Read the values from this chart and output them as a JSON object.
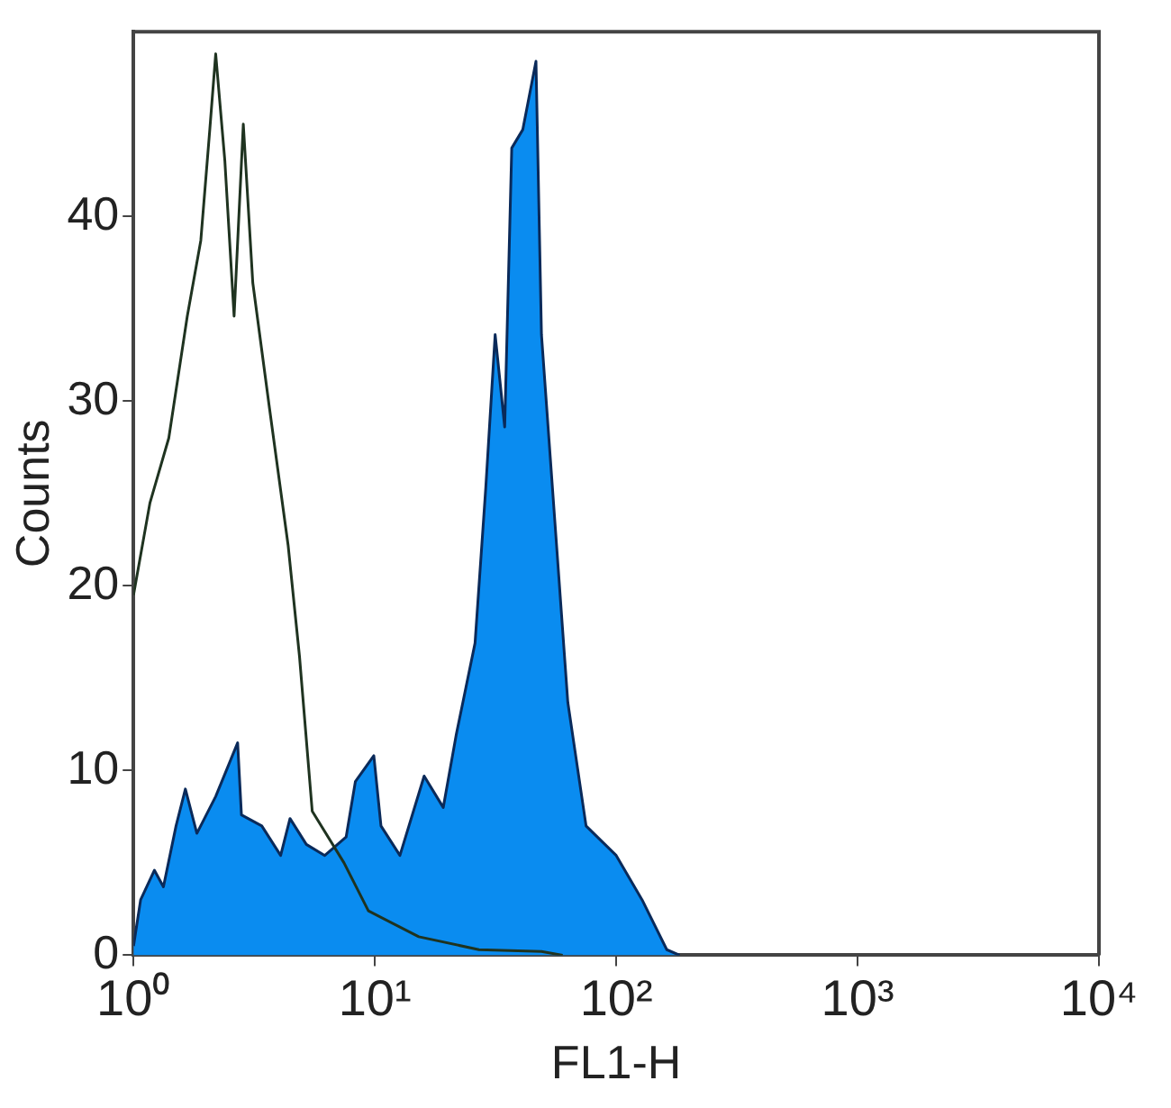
{
  "chart_data": {
    "type": "area",
    "xlabel": "FL1-H",
    "ylabel": "Counts",
    "log": "x",
    "grid": false,
    "legend": false,
    "marker": "none",
    "xlim": [
      1,
      10000
    ],
    "xticks": [
      {
        "value": 1,
        "label": "10⁰"
      },
      {
        "value": 10,
        "label": "10¹"
      },
      {
        "value": 100,
        "label": "10²"
      },
      {
        "value": 1000,
        "label": "10³"
      },
      {
        "value": 10000,
        "label": "10⁴"
      }
    ],
    "ylim": [
      0,
      50
    ],
    "yticks": [
      0,
      10,
      20,
      30,
      40
    ],
    "series": [
      {
        "color": "#0a8cf0",
        "x": [
          1.0,
          1.07,
          1.22,
          1.33,
          1.5,
          1.64,
          1.83,
          2.19,
          2.7,
          2.8,
          3.4,
          4.07,
          4.45,
          5.2,
          6.2,
          7.6,
          8.3,
          9.9,
          10.6,
          12.7,
          16,
          19.2,
          21.7,
          26,
          28.8,
          31.5,
          34.5,
          36.9,
          41,
          46.5,
          49,
          55.6,
          63,
          75,
          100,
          128,
          162,
          183
        ],
        "values": [
          0.5,
          3,
          4.6,
          3.7,
          7,
          9,
          6.6,
          8.6,
          11.5,
          7.6,
          7,
          5.4,
          7.4,
          6,
          5.4,
          6.4,
          9.4,
          10.8,
          7,
          5.4,
          9.7,
          8,
          11.9,
          16.9,
          25.3,
          33.6,
          28.6,
          43.7,
          44.7,
          48.4,
          33.6,
          23.6,
          13.7,
          7,
          5.4,
          3,
          0.3,
          0
        ]
      },
      {
        "type": "line",
        "color": "#1f3320",
        "x": [
          1.0,
          1.17,
          1.4,
          1.67,
          1.9,
          2.07,
          2.19,
          2.39,
          2.61,
          2.85,
          3.12,
          3.66,
          4.37,
          4.87,
          5.5,
          7.45,
          9.4,
          15.2,
          27,
          49,
          60
        ],
        "values": [
          19.5,
          24.5,
          28,
          34.6,
          38.7,
          44.7,
          48.8,
          43,
          34.6,
          45,
          36.4,
          29.6,
          22.2,
          16.2,
          7.8,
          5,
          2.4,
          1,
          0.3,
          0.2,
          0
        ]
      }
    ]
  }
}
